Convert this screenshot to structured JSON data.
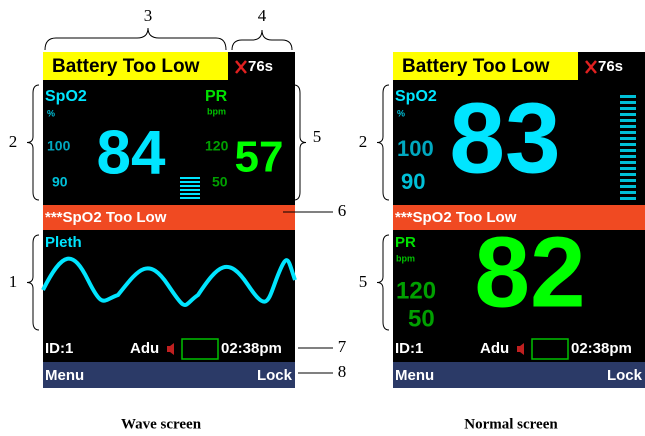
{
  "screens": [
    {
      "caption": "Wave screen",
      "status": "Battery Too Low",
      "timer": "76s",
      "spo2_label": "SpO2",
      "spo2_unit": "%",
      "spo2_high": "100",
      "spo2_low": "90",
      "spo2_value": "84",
      "pr_label": "PR",
      "pr_unit": "bpm",
      "pr_high": "120",
      "pr_low": "50",
      "pr_value": "57",
      "alarm": "***SpO2 Too Low",
      "pleth_label": "Pleth",
      "id": "ID:1",
      "mode": "Adu",
      "time": "02:38pm",
      "menu": "Menu",
      "lock": "Lock"
    },
    {
      "caption": "Normal screen",
      "status": "Battery Too Low",
      "timer": "76s",
      "spo2_label": "SpO2",
      "spo2_unit": "%",
      "spo2_high": "100",
      "spo2_low": "90",
      "spo2_value": "83",
      "pr_label": "PR",
      "pr_unit": "bpm",
      "pr_high": "120",
      "pr_low": "50",
      "pr_value": "82",
      "alarm": "***SpO2 Too Low",
      "id": "ID:1",
      "mode": "Adu",
      "time": "02:38pm",
      "menu": "Menu",
      "lock": "Lock"
    }
  ],
  "callouts": [
    "3",
    "4",
    "2",
    "5",
    "6",
    "1",
    "7",
    "8",
    "2",
    "5"
  ]
}
